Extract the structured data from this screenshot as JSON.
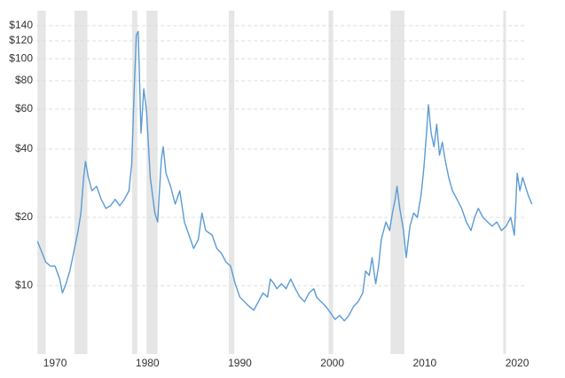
{
  "chart_data": {
    "type": "line",
    "log_y": true,
    "grid": true,
    "band_color": "#e6e6e6",
    "bands": [
      [
        1968.1,
        1969.0
      ],
      [
        1972.1,
        1973.5
      ],
      [
        1978.35,
        1978.9
      ],
      [
        1979.9,
        1981.1
      ],
      [
        1988.8,
        1989.4
      ],
      [
        1999.6,
        2000.1
      ],
      [
        2006.3,
        2007.8
      ],
      [
        2018.5,
        2018.8
      ]
    ],
    "xlim": [
      1968,
      2022
    ],
    "xticks": [
      1970,
      1980,
      1990,
      2000,
      2010,
      2020
    ],
    "ylim": [
      5,
      160
    ],
    "yticks": [
      {
        "value": 10,
        "label": "$10"
      },
      {
        "value": 20,
        "label": "$20"
      },
      {
        "value": 40,
        "label": "$40"
      },
      {
        "value": 60,
        "label": "$60"
      },
      {
        "value": 80,
        "label": "$80"
      },
      {
        "value": 100,
        "label": "$100"
      },
      {
        "value": 120,
        "label": "$120"
      },
      {
        "value": 140,
        "label": "$140"
      }
    ],
    "x": [
      1968.1,
      1969.0,
      1969.5,
      1970.0,
      1970.5,
      1970.8,
      1971.2,
      1971.6,
      1972.0,
      1972.5,
      1972.8,
      1973.1,
      1973.3,
      1973.6,
      1974.0,
      1974.5,
      1975.0,
      1975.5,
      1976.0,
      1976.5,
      1977.0,
      1977.5,
      1978.0,
      1978.3,
      1978.6,
      1978.8,
      1979.0,
      1979.3,
      1979.6,
      1979.9,
      1980.3,
      1980.8,
      1981.1,
      1981.5,
      1981.7,
      1982.0,
      1982.5,
      1983.0,
      1983.5,
      1984.0,
      1984.5,
      1985.0,
      1985.5,
      1985.9,
      1986.3,
      1987.0,
      1987.5,
      1988.0,
      1988.5,
      1989.0,
      1989.5,
      1990.0,
      1990.5,
      1991.0,
      1991.5,
      1992.0,
      1992.5,
      1993.0,
      1993.3,
      1993.7,
      1994.0,
      1994.5,
      1995.0,
      1995.5,
      1996.0,
      1996.5,
      1997.0,
      1997.5,
      1998.0,
      1998.3,
      1998.8,
      1999.3,
      1999.8,
      2000.3,
      2000.8,
      2001.3,
      2001.8,
      2002.3,
      2002.8,
      2003.3,
      2003.6,
      2004.0,
      2004.3,
      2004.7,
      2005.0,
      2005.3,
      2005.8,
      2006.2,
      2006.5,
      2006.8,
      2007.0,
      2007.3,
      2007.7,
      2008.0,
      2008.4,
      2008.8,
      2009.2,
      2009.6,
      2009.9,
      2010.2,
      2010.4,
      2010.7,
      2011.0,
      2011.3,
      2011.6,
      2011.9,
      2012.2,
      2012.6,
      2013.0,
      2013.5,
      2014.0,
      2014.5,
      2015.0,
      2015.4,
      2015.8,
      2016.3,
      2016.8,
      2017.3,
      2017.8,
      2018.3,
      2018.8,
      2019.3,
      2019.7,
      2020.0,
      2020.3,
      2020.6,
      2020.9,
      2021.2,
      2021.6
    ],
    "series": [
      {
        "color": "#5b9bd5",
        "values": [
          15.7,
          12.7,
          12.2,
          12.2,
          10.7,
          9.3,
          10.2,
          11.6,
          13.9,
          17.5,
          20.9,
          30,
          35.3,
          30,
          26.2,
          27.4,
          24,
          21.9,
          22.5,
          24,
          22.5,
          24,
          26.2,
          34.3,
          80.7,
          127,
          132,
          47,
          73.7,
          59,
          30,
          20.9,
          19.1,
          35.9,
          41,
          31.3,
          27.4,
          22.9,
          26.2,
          19.1,
          16.7,
          14.6,
          16,
          20.9,
          17.5,
          16.7,
          14.6,
          13.9,
          12.7,
          12.2,
          10.2,
          8.9,
          8.5,
          8.1,
          7.8,
          8.5,
          9.3,
          8.9,
          10.7,
          10.2,
          9.7,
          10.2,
          9.7,
          10.7,
          9.7,
          8.9,
          8.5,
          9.3,
          9.7,
          8.9,
          8.5,
          8.1,
          7.6,
          7.1,
          7.4,
          7.0,
          7.4,
          8.1,
          8.5,
          9.3,
          11.6,
          11.1,
          13.3,
          10.2,
          12.2,
          16,
          19.1,
          17.5,
          20.9,
          24,
          27.4,
          21.9,
          17.5,
          13.3,
          18.3,
          20.9,
          20,
          25,
          32.8,
          47,
          62.7,
          47,
          41,
          51.5,
          37.6,
          42.9,
          35.9,
          30,
          26.2,
          24,
          21.9,
          19.1,
          17.5,
          20,
          21.9,
          20,
          19.1,
          18.3,
          19.1,
          17.5,
          18.3,
          20,
          16.7,
          31.3,
          26.2,
          30,
          27.4,
          25,
          22.9
        ]
      }
    ]
  }
}
